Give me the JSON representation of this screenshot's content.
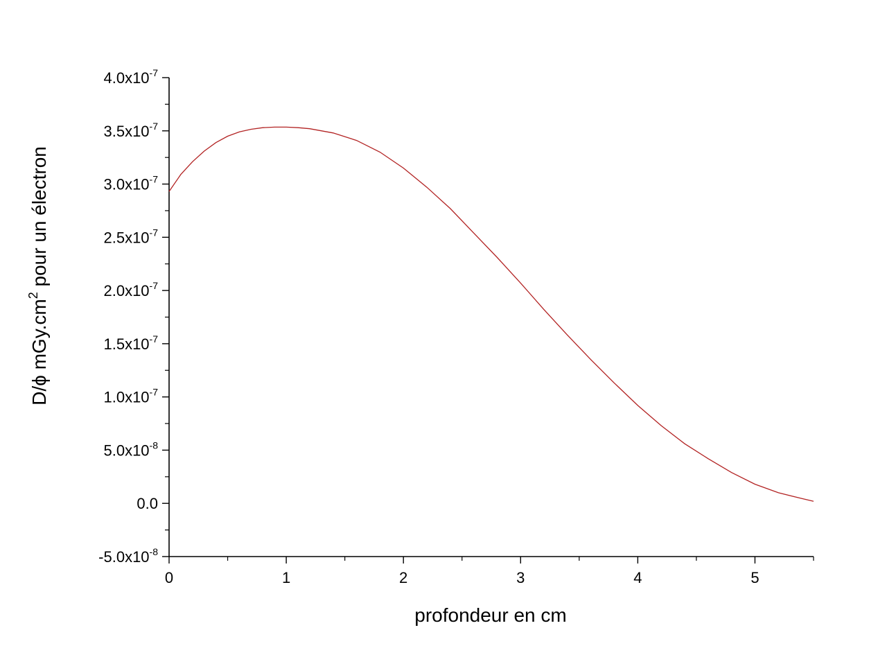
{
  "chart_data": {
    "type": "line",
    "xlabel": "profondeur en cm",
    "ylabel": {
      "main": "D/ϕ mGy.cm",
      "sup": "2",
      "rest": " pour un électron"
    },
    "xlim": [
      0,
      5.5
    ],
    "ylim": [
      -5e-08,
      4e-07
    ],
    "x_ticks": [
      {
        "value": 0,
        "label": "0"
      },
      {
        "value": 1,
        "label": "1"
      },
      {
        "value": 2,
        "label": "2"
      },
      {
        "value": 3,
        "label": "3"
      },
      {
        "value": 4,
        "label": "4"
      },
      {
        "value": 5,
        "label": "5"
      }
    ],
    "y_ticks": [
      {
        "value": -5e-08,
        "mant": "-5.0x10",
        "exp": "-8"
      },
      {
        "value": 0,
        "mant": "0.0",
        "exp": ""
      },
      {
        "value": 5e-08,
        "mant": "5.0x10",
        "exp": "-8"
      },
      {
        "value": 1e-07,
        "mant": "1.0x10",
        "exp": "-7"
      },
      {
        "value": 1.5e-07,
        "mant": "1.5x10",
        "exp": "-7"
      },
      {
        "value": 2e-07,
        "mant": "2.0x10",
        "exp": "-7"
      },
      {
        "value": 2.5e-07,
        "mant": "2.5x10",
        "exp": "-7"
      },
      {
        "value": 3e-07,
        "mant": "3.0x10",
        "exp": "-7"
      },
      {
        "value": 3.5e-07,
        "mant": "3.5x10",
        "exp": "-7"
      },
      {
        "value": 4e-07,
        "mant": "4.0x10",
        "exp": "-7"
      }
    ],
    "grid": false,
    "line_color": "#b22222",
    "series": [
      {
        "x": [
          0,
          0.1,
          0.2,
          0.3,
          0.4,
          0.5,
          0.6,
          0.7,
          0.8,
          0.9,
          1.0,
          1.1,
          1.2,
          1.4,
          1.6,
          1.8,
          2.0,
          2.2,
          2.4,
          2.6,
          2.8,
          3.0,
          3.2,
          3.4,
          3.6,
          3.8,
          4.0,
          4.2,
          4.4,
          4.6,
          4.8,
          5.0,
          5.2,
          5.4,
          5.5
        ],
        "y": [
          2.93e-07,
          3.09e-07,
          3.21e-07,
          3.31e-07,
          3.39e-07,
          3.45e-07,
          3.49e-07,
          3.515e-07,
          3.53e-07,
          3.535e-07,
          3.535e-07,
          3.53e-07,
          3.52e-07,
          3.48e-07,
          3.41e-07,
          3.3e-07,
          3.15e-07,
          2.97e-07,
          2.77e-07,
          2.54e-07,
          2.31e-07,
          2.07e-07,
          1.82e-07,
          1.58e-07,
          1.35e-07,
          1.13e-07,
          9.2e-08,
          7.3e-08,
          5.6e-08,
          4.2e-08,
          2.9e-08,
          1.8e-08,
          1e-08,
          4.5e-09,
          2e-09
        ]
      }
    ]
  }
}
